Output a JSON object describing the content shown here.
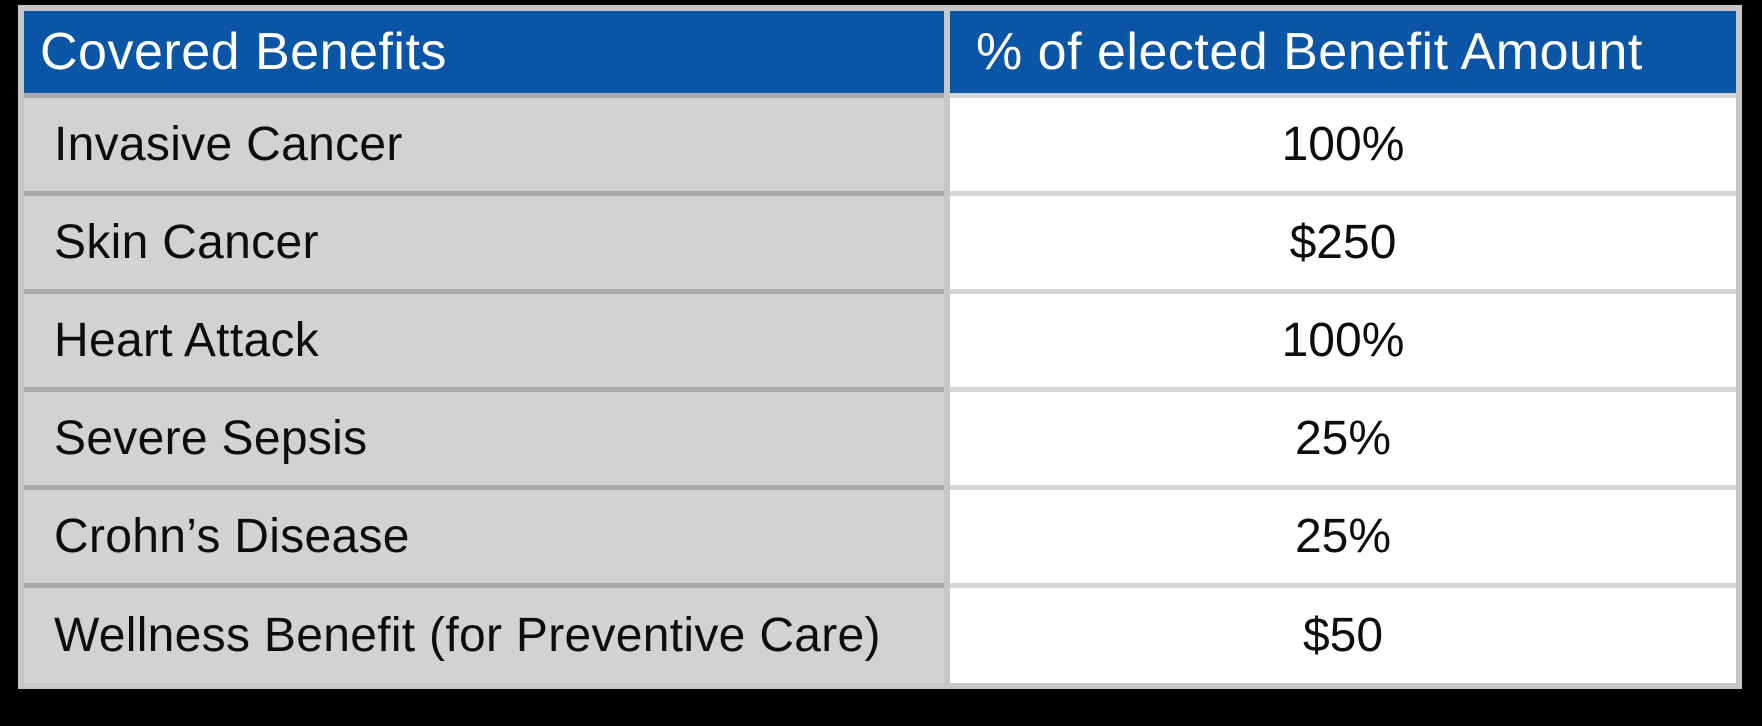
{
  "table": {
    "header": {
      "benefits_label": "Covered Benefits",
      "amount_label": "% of elected Benefit Amount"
    },
    "rows": [
      {
        "benefit": "Invasive Cancer",
        "amount": "100%"
      },
      {
        "benefit": "Skin Cancer",
        "amount": "$250"
      },
      {
        "benefit": "Heart Attack",
        "amount": "100%"
      },
      {
        "benefit": "Severe Sepsis",
        "amount": "25%"
      },
      {
        "benefit": "Crohn’s Disease",
        "amount": "25%"
      },
      {
        "benefit": "Wellness Benefit (for Preventive Care)",
        "amount": "$50"
      }
    ]
  },
  "colors": {
    "page-bg": "#000000",
    "header-bg": "#0a55a5",
    "header-text": "#ffffff",
    "left-cell-bg": "#d2d2d2",
    "right-cell-bg": "#ffffff",
    "frame": "#c5c7c9",
    "hdiv-left": "#a9a9a9",
    "hdiv-right": "#d5d5d5",
    "body-text": "#0d0d0d"
  }
}
